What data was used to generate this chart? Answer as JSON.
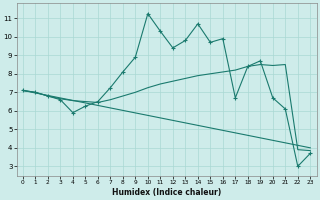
{
  "xlabel": "Humidex (Indice chaleur)",
  "bg_color": "#ceecea",
  "line_color": "#1a7a6e",
  "grid_color": "#aad8d4",
  "xlim": [
    -0.5,
    23.5
  ],
  "ylim": [
    2.5,
    11.8
  ],
  "xticks": [
    0,
    1,
    2,
    3,
    4,
    5,
    6,
    7,
    8,
    9,
    10,
    11,
    12,
    13,
    14,
    15,
    16,
    17,
    18,
    19,
    20,
    21,
    22,
    23
  ],
  "yticks": [
    3,
    4,
    5,
    6,
    7,
    8,
    9,
    10,
    11
  ],
  "line1_x": [
    0,
    1,
    2,
    3,
    4,
    5,
    6,
    7,
    8,
    9,
    10,
    11,
    12,
    13,
    14,
    15,
    16,
    17,
    18,
    19,
    20,
    21,
    22,
    23
  ],
  "line1_y": [
    7.1,
    7.0,
    6.8,
    6.6,
    5.9,
    6.25,
    6.5,
    7.25,
    8.1,
    8.9,
    11.25,
    10.3,
    9.4,
    9.8,
    10.7,
    9.7,
    9.9,
    6.7,
    8.4,
    8.7,
    6.7,
    6.1,
    3.0,
    3.7
  ],
  "line2_x": [
    0,
    23
  ],
  "line2_y": [
    7.1,
    4.0
  ],
  "line3_x": [
    0,
    1,
    2,
    3,
    4,
    5,
    6,
    7,
    8,
    9,
    10,
    11,
    12,
    13,
    14,
    15,
    16,
    17,
    18,
    19,
    20,
    21,
    22,
    23
  ],
  "line3_y": [
    7.1,
    7.0,
    6.8,
    6.65,
    6.55,
    6.5,
    6.45,
    6.6,
    6.8,
    7.0,
    7.25,
    7.45,
    7.6,
    7.75,
    7.9,
    8.0,
    8.1,
    8.2,
    8.4,
    8.5,
    8.45,
    8.5,
    3.9,
    3.85
  ]
}
